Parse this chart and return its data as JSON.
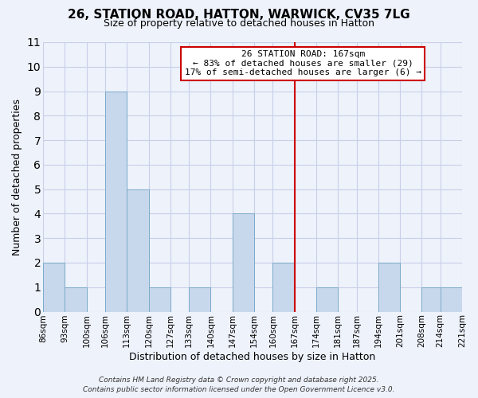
{
  "title": "26, STATION ROAD, HATTON, WARWICK, CV35 7LG",
  "subtitle": "Size of property relative to detached houses in Hatton",
  "xlabel": "Distribution of detached houses by size in Hatton",
  "ylabel": "Number of detached properties",
  "bins": [
    86,
    93,
    100,
    106,
    113,
    120,
    127,
    133,
    140,
    147,
    154,
    160,
    167,
    174,
    181,
    187,
    194,
    201,
    208,
    214,
    221
  ],
  "counts": [
    2,
    1,
    0,
    9,
    5,
    1,
    0,
    1,
    0,
    4,
    0,
    2,
    0,
    1,
    0,
    0,
    2,
    0,
    1,
    1
  ],
  "tick_labels": [
    "86sqm",
    "93sqm",
    "100sqm",
    "106sqm",
    "113sqm",
    "120sqm",
    "127sqm",
    "133sqm",
    "140sqm",
    "147sqm",
    "154sqm",
    "160sqm",
    "167sqm",
    "174sqm",
    "181sqm",
    "187sqm",
    "194sqm",
    "201sqm",
    "208sqm",
    "214sqm",
    "221sqm"
  ],
  "bar_color": "#c8d8ec",
  "bar_edge_color": "#7baac8",
  "vline_x": 167,
  "vline_color": "#cc0000",
  "ylim": [
    0,
    11
  ],
  "yticks": [
    0,
    1,
    2,
    3,
    4,
    5,
    6,
    7,
    8,
    9,
    10,
    11
  ],
  "annotation_title": "26 STATION ROAD: 167sqm",
  "annotation_line1": "← 83% of detached houses are smaller (29)",
  "annotation_line2": "17% of semi-detached houses are larger (6) →",
  "annotation_box_color": "#ffffff",
  "annotation_box_edge": "#cc0000",
  "footer1": "Contains HM Land Registry data © Crown copyright and database right 2025.",
  "footer2": "Contains public sector information licensed under the Open Government Licence v3.0.",
  "background_color": "#eef2fb",
  "grid_color": "#c8cfe8",
  "title_fontsize": 11,
  "subtitle_fontsize": 9,
  "ylabel_fontsize": 9,
  "xlabel_fontsize": 9,
  "tick_fontsize": 7.5,
  "footer_fontsize": 6.5,
  "annot_fontsize": 8
}
